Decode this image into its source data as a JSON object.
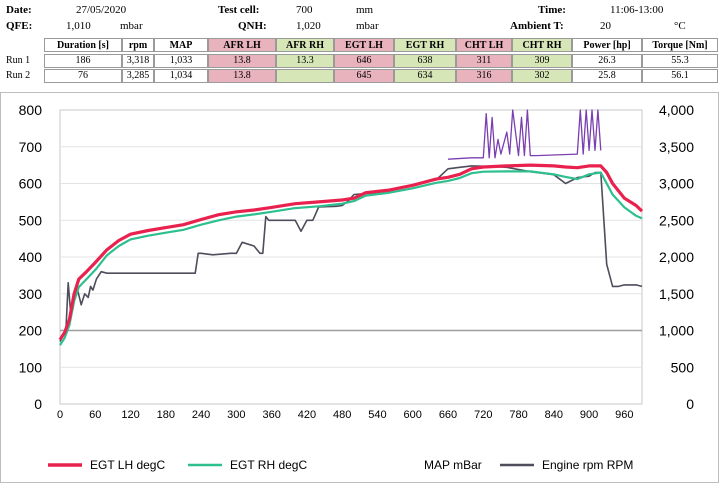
{
  "header": {
    "date_label": "Date:",
    "date_value": "27/05/2020",
    "qfe_label": "QFE:",
    "qfe_value": "1,010",
    "qfe_unit": "mbar",
    "test_cell_label": "Test cell:",
    "test_cell_value": "700",
    "test_cell_unit": "mm",
    "qnh_label": "QNH:",
    "qnh_value": "1,020",
    "qnh_unit": "mbar",
    "time_label": "Time:",
    "time_value": "11:06-13:00",
    "ambient_label": "Ambient T:",
    "ambient_value": "20",
    "ambient_unit": "°C",
    "columns": [
      "Duration [s]",
      "rpm",
      "MAP",
      "AFR LH",
      "AFR RH",
      "EGT LH",
      "EGT RH",
      "CHT LH",
      "CHT RH",
      "Power [hp]",
      "Torque [Nm]"
    ],
    "rows": [
      {
        "label": "Run 1",
        "values": [
          "186",
          "3,318",
          "1,033",
          "13.8",
          "13.3",
          "646",
          "638",
          "311",
          "309",
          "26.3",
          "55.3"
        ]
      },
      {
        "label": "Run 2",
        "values": [
          "76",
          "3,285",
          "1,034",
          "13.8",
          "",
          "645",
          "634",
          "316",
          "302",
          "25.8",
          "56.1"
        ]
      }
    ],
    "highlight_colors": {
      "pink": "#e9b3be",
      "green": "#d7e6b7"
    }
  },
  "chart_data": {
    "type": "line",
    "title": "",
    "xlabel": "",
    "ylabel": "",
    "xlim": [
      0,
      990
    ],
    "ylim_left": [
      0,
      800
    ],
    "ylim_right": [
      0,
      4000
    ],
    "x_ticks": [
      "0",
      "60",
      "120",
      "180",
      "240",
      "300",
      "360",
      "420",
      "480",
      "540",
      "600",
      "660",
      "720",
      "780",
      "840",
      "900",
      "960"
    ],
    "y_left_ticks": [
      "0",
      "100",
      "200",
      "300",
      "400",
      "500",
      "600",
      "700",
      "800"
    ],
    "y_right_ticks": [
      "0",
      "500",
      "1,000",
      "1,500",
      "2,000",
      "2,500",
      "3,000",
      "3,500",
      "4,000"
    ],
    "grid": "horizontal",
    "reference_line": {
      "axis": "left",
      "value": 200
    },
    "legend_position": "bottom",
    "series": [
      {
        "name": "EGT LH degC",
        "axis": "left",
        "color": "#e8214e",
        "x": [
          0,
          8,
          16,
          24,
          32,
          45,
          60,
          80,
          100,
          120,
          150,
          180,
          210,
          240,
          270,
          300,
          330,
          360,
          400,
          440,
          480,
          500,
          520,
          560,
          600,
          640,
          660,
          680,
          700,
          720,
          760,
          800,
          840,
          860,
          880,
          900,
          920,
          930,
          940,
          960,
          980,
          990
        ],
        "y": [
          175,
          195,
          230,
          300,
          340,
          360,
          385,
          420,
          445,
          462,
          472,
          480,
          488,
          502,
          515,
          523,
          528,
          535,
          545,
          550,
          555,
          560,
          575,
          582,
          595,
          612,
          617,
          625,
          640,
          645,
          648,
          650,
          648,
          645,
          643,
          648,
          648,
          630,
          600,
          560,
          540,
          525
        ]
      },
      {
        "name": "EGT RH degC",
        "axis": "left",
        "color": "#2ebf8e",
        "x": [
          0,
          8,
          16,
          24,
          32,
          45,
          60,
          80,
          100,
          120,
          150,
          180,
          210,
          240,
          270,
          300,
          330,
          360,
          400,
          440,
          480,
          500,
          520,
          560,
          600,
          640,
          660,
          680,
          700,
          720,
          760,
          800,
          840,
          860,
          880,
          900,
          920,
          930,
          940,
          960,
          980,
          990
        ],
        "y": [
          160,
          180,
          215,
          280,
          318,
          340,
          365,
          405,
          430,
          448,
          458,
          466,
          474,
          488,
          500,
          510,
          516,
          523,
          533,
          538,
          545,
          552,
          567,
          575,
          587,
          602,
          607,
          615,
          628,
          632,
          633,
          633,
          625,
          618,
          612,
          625,
          630,
          600,
          570,
          535,
          512,
          505
        ]
      },
      {
        "name": "MAP mBar",
        "axis": "right",
        "color": "#7a3fb0",
        "x": [
          660,
          700,
          720,
          725,
          730,
          735,
          740,
          745,
          750,
          760,
          765,
          770,
          780,
          785,
          790,
          795,
          800,
          810,
          880,
          885,
          890,
          895,
          900,
          905,
          910,
          915,
          920
        ],
        "y": [
          3330,
          3350,
          3350,
          3950,
          3350,
          3900,
          3350,
          3600,
          3400,
          3700,
          3400,
          4000,
          3380,
          3900,
          3380,
          4000,
          3380,
          3380,
          3400,
          4000,
          3400,
          4000,
          3450,
          4000,
          3450,
          4000,
          3450
        ]
      },
      {
        "name": "Engine rpm RPM",
        "axis": "right",
        "color": "#4d4d5c",
        "x": [
          0,
          6,
          10,
          14,
          18,
          22,
          26,
          30,
          36,
          42,
          48,
          52,
          56,
          62,
          70,
          80,
          90,
          100,
          110,
          120,
          150,
          180,
          190,
          200,
          230,
          235,
          240,
          260,
          290,
          300,
          310,
          330,
          340,
          345,
          350,
          355,
          360,
          380,
          400,
          410,
          420,
          430,
          440,
          470,
          480,
          490,
          500,
          530,
          560,
          600,
          640,
          660,
          680,
          700,
          740,
          760,
          800,
          840,
          860,
          880,
          900,
          910,
          920,
          930,
          940,
          950,
          960,
          980,
          990
        ],
        "y": [
          850,
          950,
          1000,
          1650,
          1250,
          1300,
          1500,
          1550,
          1350,
          1500,
          1450,
          1600,
          1550,
          1700,
          1800,
          1780,
          1780,
          1780,
          1780,
          1780,
          1780,
          1780,
          1780,
          1780,
          1780,
          2050,
          2050,
          2030,
          2050,
          2050,
          2200,
          2150,
          2050,
          2050,
          2550,
          2500,
          2500,
          2500,
          2500,
          2350,
          2500,
          2500,
          2680,
          2690,
          2700,
          2760,
          2850,
          2870,
          2900,
          2980,
          3050,
          3200,
          3220,
          3240,
          3230,
          3220,
          3160,
          3120,
          3000,
          3080,
          3100,
          3150,
          3150,
          1900,
          1600,
          1600,
          1620,
          1620,
          1600
        ]
      }
    ]
  }
}
